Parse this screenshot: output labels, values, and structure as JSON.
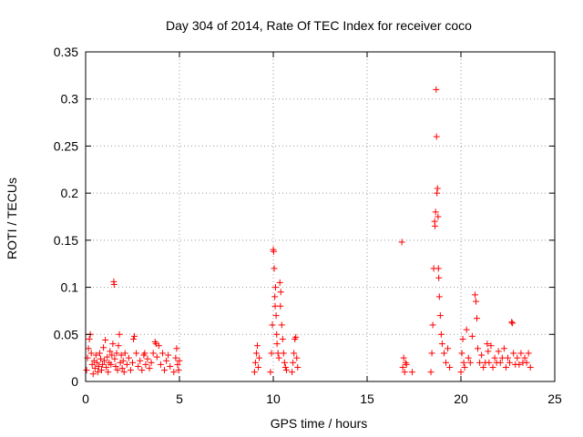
{
  "chart_data": {
    "type": "scatter",
    "title": "Day 304 of 2014, Rate Of TEC Index for receiver coco",
    "xlabel": "GPS time / hours",
    "ylabel": "ROTI / TECUs",
    "xlim": [
      0,
      25
    ],
    "ylim": [
      0,
      0.35
    ],
    "xticks": [
      0,
      5,
      10,
      15,
      20,
      25
    ],
    "xtick_labels": [
      "0",
      "5",
      "10",
      "15",
      "20",
      "25"
    ],
    "yticks": [
      0,
      0.05,
      0.1,
      0.15,
      0.2,
      0.25,
      0.3,
      0.35
    ],
    "ytick_labels": [
      "0",
      "0.05",
      "0.1",
      "0.15",
      "0.2",
      "0.25",
      "0.3",
      "0.35"
    ],
    "grid": true,
    "marker": "+",
    "color": "#ff0000",
    "series": [
      {
        "name": "ROTI",
        "points": [
          [
            0.05,
            0.012
          ],
          [
            0.1,
            0.025
          ],
          [
            0.15,
            0.035
          ],
          [
            0.2,
            0.045
          ],
          [
            0.25,
            0.05
          ],
          [
            0.3,
            0.03
          ],
          [
            0.35,
            0.018
          ],
          [
            0.4,
            0.008
          ],
          [
            0.45,
            0.022
          ],
          [
            0.5,
            0.014
          ],
          [
            0.55,
            0.028
          ],
          [
            0.6,
            0.02
          ],
          [
            0.65,
            0.01
          ],
          [
            0.7,
            0.016
          ],
          [
            0.75,
            0.03
          ],
          [
            0.8,
            0.024
          ],
          [
            0.85,
            0.012
          ],
          [
            0.9,
            0.018
          ],
          [
            0.95,
            0.036
          ],
          [
            1.0,
            0.022
          ],
          [
            1.05,
            0.044
          ],
          [
            1.1,
            0.015
          ],
          [
            1.15,
            0.026
          ],
          [
            1.2,
            0.01
          ],
          [
            1.25,
            0.02
          ],
          [
            1.3,
            0.032
          ],
          [
            1.35,
            0.018
          ],
          [
            1.4,
            0.028
          ],
          [
            1.45,
            0.04
          ],
          [
            1.5,
            0.106
          ],
          [
            1.52,
            0.103
          ],
          [
            1.55,
            0.024
          ],
          [
            1.6,
            0.016
          ],
          [
            1.65,
            0.03
          ],
          [
            1.7,
            0.012
          ],
          [
            1.75,
            0.038
          ],
          [
            1.8,
            0.05
          ],
          [
            1.85,
            0.02
          ],
          [
            1.9,
            0.028
          ],
          [
            1.95,
            0.014
          ],
          [
            2.0,
            0.022
          ],
          [
            2.05,
            0.01
          ],
          [
            2.1,
            0.03
          ],
          [
            2.2,
            0.018
          ],
          [
            2.3,
            0.025
          ],
          [
            2.4,
            0.012
          ],
          [
            2.5,
            0.02
          ],
          [
            2.55,
            0.045
          ],
          [
            2.6,
            0.048
          ],
          [
            2.7,
            0.03
          ],
          [
            2.8,
            0.016
          ],
          [
            2.9,
            0.022
          ],
          [
            3.0,
            0.012
          ],
          [
            3.1,
            0.028
          ],
          [
            3.15,
            0.03
          ],
          [
            3.2,
            0.018
          ],
          [
            3.3,
            0.024
          ],
          [
            3.4,
            0.014
          ],
          [
            3.5,
            0.02
          ],
          [
            3.6,
            0.03
          ],
          [
            3.7,
            0.042
          ],
          [
            3.75,
            0.04
          ],
          [
            3.8,
            0.026
          ],
          [
            3.9,
            0.038
          ],
          [
            4.0,
            0.018
          ],
          [
            4.1,
            0.03
          ],
          [
            4.2,
            0.012
          ],
          [
            4.3,
            0.022
          ],
          [
            4.4,
            0.028
          ],
          [
            4.5,
            0.016
          ],
          [
            4.7,
            0.01
          ],
          [
            4.8,
            0.025
          ],
          [
            4.85,
            0.035
          ],
          [
            4.9,
            0.018
          ],
          [
            4.95,
            0.012
          ],
          [
            5.0,
            0.022
          ],
          [
            9.0,
            0.01
          ],
          [
            9.05,
            0.02
          ],
          [
            9.1,
            0.03
          ],
          [
            9.15,
            0.038
          ],
          [
            9.2,
            0.015
          ],
          [
            9.25,
            0.025
          ],
          [
            9.85,
            0.01
          ],
          [
            9.9,
            0.03
          ],
          [
            9.95,
            0.06
          ],
          [
            10.0,
            0.14
          ],
          [
            10.02,
            0.138
          ],
          [
            10.05,
            0.12
          ],
          [
            10.08,
            0.09
          ],
          [
            10.1,
            0.08
          ],
          [
            10.12,
            0.1
          ],
          [
            10.15,
            0.07
          ],
          [
            10.18,
            0.05
          ],
          [
            10.2,
            0.04
          ],
          [
            10.25,
            0.03
          ],
          [
            10.3,
            0.025
          ],
          [
            10.35,
            0.105
          ],
          [
            10.38,
            0.08
          ],
          [
            10.4,
            0.095
          ],
          [
            10.45,
            0.06
          ],
          [
            10.5,
            0.045
          ],
          [
            10.55,
            0.03
          ],
          [
            10.6,
            0.02
          ],
          [
            10.65,
            0.015
          ],
          [
            10.7,
            0.012
          ],
          [
            11.0,
            0.01
          ],
          [
            11.05,
            0.02
          ],
          [
            11.1,
            0.03
          ],
          [
            11.15,
            0.045
          ],
          [
            11.2,
            0.047
          ],
          [
            11.25,
            0.025
          ],
          [
            11.3,
            0.015
          ],
          [
            16.85,
            0.148
          ],
          [
            16.9,
            0.015
          ],
          [
            16.95,
            0.025
          ],
          [
            17.0,
            0.01
          ],
          [
            17.05,
            0.02
          ],
          [
            17.1,
            0.018
          ],
          [
            17.4,
            0.01
          ],
          [
            18.4,
            0.01
          ],
          [
            18.45,
            0.03
          ],
          [
            18.5,
            0.06
          ],
          [
            18.55,
            0.12
          ],
          [
            18.6,
            0.17
          ],
          [
            18.62,
            0.165
          ],
          [
            18.65,
            0.18
          ],
          [
            18.68,
            0.31
          ],
          [
            18.7,
            0.26
          ],
          [
            18.72,
            0.2
          ],
          [
            18.75,
            0.205
          ],
          [
            18.78,
            0.175
          ],
          [
            18.8,
            0.12
          ],
          [
            18.82,
            0.11
          ],
          [
            18.85,
            0.09
          ],
          [
            18.9,
            0.07
          ],
          [
            18.95,
            0.05
          ],
          [
            19.0,
            0.04
          ],
          [
            19.1,
            0.03
          ],
          [
            19.2,
            0.02
          ],
          [
            19.3,
            0.035
          ],
          [
            19.4,
            0.015
          ],
          [
            20.0,
            0.01
          ],
          [
            20.05,
            0.03
          ],
          [
            20.1,
            0.045
          ],
          [
            20.15,
            0.02
          ],
          [
            20.2,
            0.015
          ],
          [
            20.3,
            0.055
          ],
          [
            20.4,
            0.025
          ],
          [
            20.5,
            0.02
          ],
          [
            20.6,
            0.048
          ],
          [
            20.75,
            0.092
          ],
          [
            20.8,
            0.085
          ],
          [
            20.85,
            0.067
          ],
          [
            20.9,
            0.035
          ],
          [
            21.0,
            0.02
          ],
          [
            21.1,
            0.028
          ],
          [
            21.2,
            0.015
          ],
          [
            21.3,
            0.02
          ],
          [
            21.4,
            0.04
          ],
          [
            21.45,
            0.032
          ],
          [
            21.5,
            0.02
          ],
          [
            21.6,
            0.038
          ],
          [
            21.7,
            0.015
          ],
          [
            21.8,
            0.025
          ],
          [
            21.9,
            0.02
          ],
          [
            22.0,
            0.032
          ],
          [
            22.1,
            0.02
          ],
          [
            22.2,
            0.025
          ],
          [
            22.3,
            0.035
          ],
          [
            22.4,
            0.015
          ],
          [
            22.5,
            0.025
          ],
          [
            22.6,
            0.02
          ],
          [
            22.7,
            0.063
          ],
          [
            22.75,
            0.062
          ],
          [
            22.8,
            0.03
          ],
          [
            22.9,
            0.018
          ],
          [
            23.0,
            0.025
          ],
          [
            23.1,
            0.018
          ],
          [
            23.2,
            0.03
          ],
          [
            23.3,
            0.02
          ],
          [
            23.4,
            0.025
          ],
          [
            23.5,
            0.02
          ],
          [
            23.6,
            0.03
          ],
          [
            23.7,
            0.015
          ]
        ]
      }
    ]
  }
}
